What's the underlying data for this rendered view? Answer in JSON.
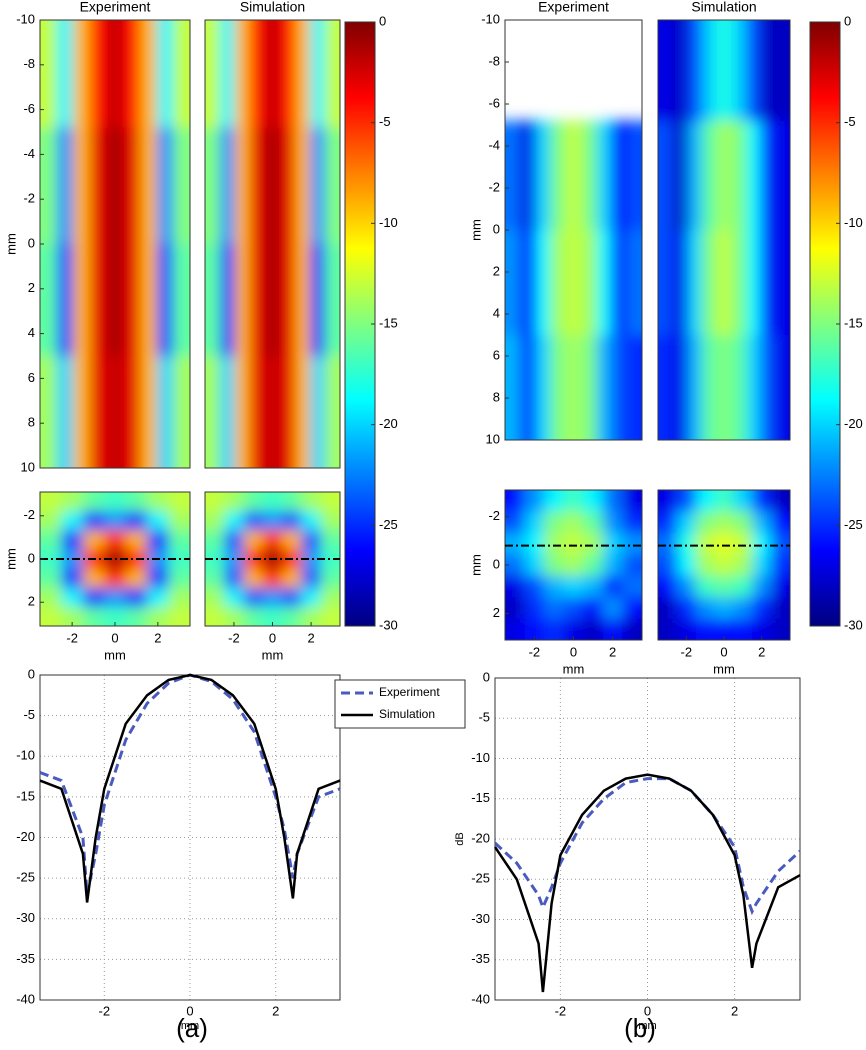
{
  "captions": [
    "(a)",
    "(b)"
  ],
  "chart_data": [
    {
      "type": "heatmap",
      "title": "Experiment",
      "ylabel": "mm",
      "colormap": "jet",
      "clim": [
        -30,
        0
      ],
      "xlim": [
        -3,
        3
      ],
      "ylim": [
        -10,
        10
      ],
      "y_reversed": true,
      "yticks": [
        -10,
        -8,
        -6,
        -4,
        -2,
        0,
        2,
        4,
        6,
        8,
        10
      ],
      "y_edges": [
        -10,
        -5.2,
        0,
        5,
        10
      ],
      "values": [
        [
          -13,
          -19,
          -9,
          -4,
          -2,
          -4,
          -9,
          -19,
          -13
        ],
        [
          -15,
          -22,
          -9,
          -3,
          -1,
          -3,
          -9,
          -22,
          -15
        ],
        [
          -16,
          -24,
          -9,
          -3,
          -1,
          -3,
          -9,
          -24,
          -16
        ],
        [
          -14,
          -20,
          -9,
          -3,
          -2,
          -3,
          -9,
          -20,
          -14
        ]
      ]
    },
    {
      "type": "heatmap",
      "title": "Simulation",
      "colormap": "jet",
      "clim": [
        -30,
        0
      ],
      "xlim": [
        -3,
        3
      ],
      "ylim": [
        -10,
        10
      ],
      "y_reversed": true,
      "y_edges": [
        -10,
        -5.2,
        0,
        5,
        10
      ],
      "values": [
        [
          -13,
          -19,
          -9,
          -4,
          -2,
          -4,
          -9,
          -19,
          -13
        ],
        [
          -15,
          -22,
          -9,
          -3,
          -1,
          -3,
          -9,
          -22,
          -15
        ],
        [
          -16,
          -25,
          -9,
          -3,
          -1,
          -3,
          -9,
          -25,
          -16
        ],
        [
          -14,
          -20,
          -9,
          -3,
          -2,
          -3,
          -9,
          -20,
          -14
        ]
      ]
    },
    {
      "type": "heatmap",
      "xlabel": "mm",
      "ylabel": "mm",
      "colormap": "jet",
      "clim": [
        -30,
        0
      ],
      "xlim": [
        -3.5,
        3.5
      ],
      "ylim": [
        -3.1,
        3.1
      ],
      "y_reversed": true,
      "xticks": [
        -2,
        0,
        2
      ],
      "yticks": [
        -2,
        0,
        2
      ],
      "profile_y": 0,
      "values": [
        [
          -13,
          -14,
          -16,
          -17,
          -16,
          -14,
          -13
        ],
        [
          -14,
          -19,
          -25,
          -22,
          -25,
          -19,
          -14
        ],
        [
          -16,
          -25,
          -9,
          -5,
          -9,
          -25,
          -16
        ],
        [
          -17,
          -22,
          -5,
          -1,
          -5,
          -22,
          -17
        ],
        [
          -16,
          -25,
          -9,
          -5,
          -9,
          -25,
          -16
        ],
        [
          -14,
          -19,
          -25,
          -22,
          -25,
          -19,
          -14
        ],
        [
          -13,
          -14,
          -16,
          -17,
          -16,
          -14,
          -13
        ]
      ]
    },
    {
      "type": "heatmap",
      "xlabel": "mm",
      "colormap": "jet",
      "clim": [
        -30,
        0
      ],
      "xlim": [
        -3.5,
        3.5
      ],
      "ylim": [
        -3.1,
        3.1
      ],
      "y_reversed": true,
      "xticks": [
        -2,
        0,
        2
      ],
      "profile_y": 0,
      "values": [
        [
          -13,
          -14,
          -16,
          -17,
          -16,
          -14,
          -13
        ],
        [
          -14,
          -19,
          -24,
          -22,
          -24,
          -19,
          -14
        ],
        [
          -16,
          -24,
          -9,
          -5,
          -9,
          -24,
          -16
        ],
        [
          -17,
          -22,
          -5,
          -1,
          -5,
          -22,
          -17
        ],
        [
          -16,
          -24,
          -9,
          -5,
          -9,
          -24,
          -16
        ],
        [
          -14,
          -19,
          -24,
          -22,
          -24,
          -19,
          -14
        ],
        [
          -13,
          -14,
          -16,
          -17,
          -16,
          -14,
          -13
        ]
      ]
    },
    {
      "type": "colorbar",
      "colormap": "jet",
      "lim": [
        -30,
        0
      ],
      "ticks": [
        0,
        -5,
        -10,
        -15,
        -20,
        -25,
        -30
      ]
    },
    {
      "type": "line",
      "xlabel": "mm",
      "xlim": [
        -3.5,
        3.5
      ],
      "ylim": [
        -40,
        0
      ],
      "xticks": [
        -2,
        0,
        2
      ],
      "yticks": [
        0,
        -5,
        -10,
        -15,
        -20,
        -25,
        -30,
        -35,
        -40
      ],
      "grid": true,
      "legend": "right",
      "x": [
        -3.5,
        -3,
        -2.5,
        -2.4,
        -2.2,
        -2,
        -1.5,
        -1,
        -0.5,
        0,
        0.5,
        1,
        1.5,
        2,
        2.2,
        2.4,
        2.5,
        3,
        3.5
      ],
      "series": [
        {
          "name": "Experiment",
          "color": "#4a5bbf",
          "dash": true,
          "values": [
            -12,
            -13,
            -20,
            -27,
            -22,
            -16,
            -8,
            -3.5,
            -1,
            0,
            -0.8,
            -3,
            -7,
            -15,
            -19,
            -25,
            -22,
            -15,
            -14
          ]
        },
        {
          "name": "Simulation",
          "color": "#000000",
          "values": [
            -13,
            -14,
            -22,
            -28,
            -20,
            -14,
            -6,
            -2.5,
            -0.6,
            0,
            -0.6,
            -2.5,
            -6,
            -14,
            -20,
            -27.5,
            -22,
            -14,
            -13
          ]
        }
      ]
    },
    {
      "type": "heatmap",
      "title": "Experiment",
      "ylabel": "mm",
      "colormap": "jet",
      "clim": [
        -30,
        0
      ],
      "xlim": [
        -3,
        3
      ],
      "ylim": [
        -10,
        10
      ],
      "y_reversed": true,
      "yticks": [
        -10,
        -8,
        -6,
        -4,
        -2,
        0,
        2,
        4,
        6,
        8,
        10
      ],
      "y_edges": [
        -10,
        -5.2,
        0,
        5,
        10
      ],
      "values": [
        [
          null,
          null,
          null,
          null,
          null,
          null,
          null,
          null,
          null
        ],
        [
          -23,
          -27,
          -20,
          -15,
          -13,
          -15,
          -20,
          -26,
          -24
        ],
        [
          -22,
          -26,
          -19,
          -14,
          -13,
          -14,
          -19,
          -25,
          -23
        ],
        [
          -21,
          -25,
          -20,
          -15,
          -14,
          -15,
          -21,
          -24,
          -25
        ]
      ]
    },
    {
      "type": "heatmap",
      "title": "Simulation",
      "colormap": "jet",
      "clim": [
        -30,
        0
      ],
      "xlim": [
        -3,
        3
      ],
      "ylim": [
        -10,
        10
      ],
      "y_reversed": true,
      "y_edges": [
        -10,
        -5.2,
        0,
        5,
        10
      ],
      "values": [
        [
          -27,
          -28,
          -24,
          -20,
          -18,
          -20,
          -24,
          -28,
          -28
        ],
        [
          -24,
          -28,
          -21,
          -16,
          -14,
          -15,
          -19,
          -25,
          -27
        ],
        [
          -24,
          -27,
          -20,
          -15,
          -13,
          -15,
          -19,
          -25,
          -27
        ],
        [
          -25,
          -27,
          -21,
          -16,
          -15,
          -16,
          -20,
          -24,
          -27
        ]
      ]
    },
    {
      "type": "heatmap",
      "xlabel": "mm",
      "ylabel": "mm",
      "colormap": "jet",
      "clim": [
        -30,
        0
      ],
      "xlim": [
        -3.5,
        3.5
      ],
      "ylim": [
        -3.1,
        3.1
      ],
      "y_reversed": true,
      "xticks": [
        -2,
        0,
        2
      ],
      "yticks": [
        -2,
        0,
        2
      ],
      "profile_y": -0.8,
      "values": [
        [
          -26,
          -22,
          -19,
          -17,
          -19,
          -23,
          -27
        ],
        [
          -24,
          -20,
          -15,
          -14,
          -16,
          -22,
          -25
        ],
        [
          -21,
          -19,
          -14,
          -13,
          -14,
          -20,
          -22
        ],
        [
          -23,
          -20,
          -15,
          -14,
          -16,
          -21,
          -24
        ],
        [
          -27,
          -24,
          -21,
          -20,
          -21,
          -25,
          -23
        ],
        [
          -28,
          -25,
          -23,
          -24,
          -26,
          -22,
          -26
        ],
        [
          -27,
          -26,
          -25,
          -27,
          -28,
          -26,
          -28
        ]
      ]
    },
    {
      "type": "heatmap",
      "xlabel": "mm",
      "colormap": "jet",
      "clim": [
        -30,
        0
      ],
      "xlim": [
        -3.5,
        3.5
      ],
      "ylim": [
        -3.1,
        3.1
      ],
      "y_reversed": true,
      "xticks": [
        -2,
        0,
        2
      ],
      "profile_y": -0.8,
      "values": [
        [
          -27,
          -24,
          -19,
          -17,
          -20,
          -25,
          -28
        ],
        [
          -25,
          -20,
          -15,
          -14,
          -15,
          -21,
          -26
        ],
        [
          -23,
          -18,
          -13,
          -12,
          -13,
          -19,
          -24
        ],
        [
          -24,
          -19,
          -14,
          -13,
          -14,
          -20,
          -25
        ],
        [
          -26,
          -22,
          -17,
          -16,
          -17,
          -22,
          -27
        ],
        [
          -28,
          -25,
          -22,
          -21,
          -22,
          -25,
          -28
        ],
        [
          -28,
          -27,
          -26,
          -26,
          -26,
          -27,
          -28
        ]
      ]
    },
    {
      "type": "colorbar",
      "colormap": "jet",
      "lim": [
        -30,
        0
      ],
      "ticks": [
        0,
        -5,
        -10,
        -15,
        -20,
        -25,
        -30
      ]
    },
    {
      "type": "line",
      "xlabel": "mm",
      "ylabel": "dB",
      "xlim": [
        -3.5,
        3.5
      ],
      "ylim": [
        -40,
        0
      ],
      "xticks": [
        -2,
        0,
        2
      ],
      "yticks": [
        0,
        -5,
        -10,
        -15,
        -20,
        -25,
        -30,
        -35,
        -40
      ],
      "grid": true,
      "x": [
        -3.5,
        -3,
        -2.5,
        -2.4,
        -2.2,
        -2,
        -1.5,
        -1,
        -0.5,
        0,
        0.5,
        1,
        1.5,
        2,
        2.2,
        2.4,
        2.5,
        3,
        3.5
      ],
      "series": [
        {
          "color": "#4a5bbf",
          "dash": true,
          "values": [
            -20.5,
            -23,
            -27,
            -28.5,
            -26,
            -23,
            -18,
            -15,
            -13,
            -12.5,
            -12.5,
            -14,
            -17,
            -21,
            -26,
            -29,
            -28,
            -24,
            -21.5
          ]
        },
        {
          "color": "#000000",
          "values": [
            -21,
            -25,
            -33,
            -39,
            -28,
            -22,
            -17,
            -14,
            -12.5,
            -12,
            -12.5,
            -14,
            -17,
            -22,
            -27,
            -36,
            -33,
            -26,
            -24.5
          ]
        }
      ]
    }
  ]
}
